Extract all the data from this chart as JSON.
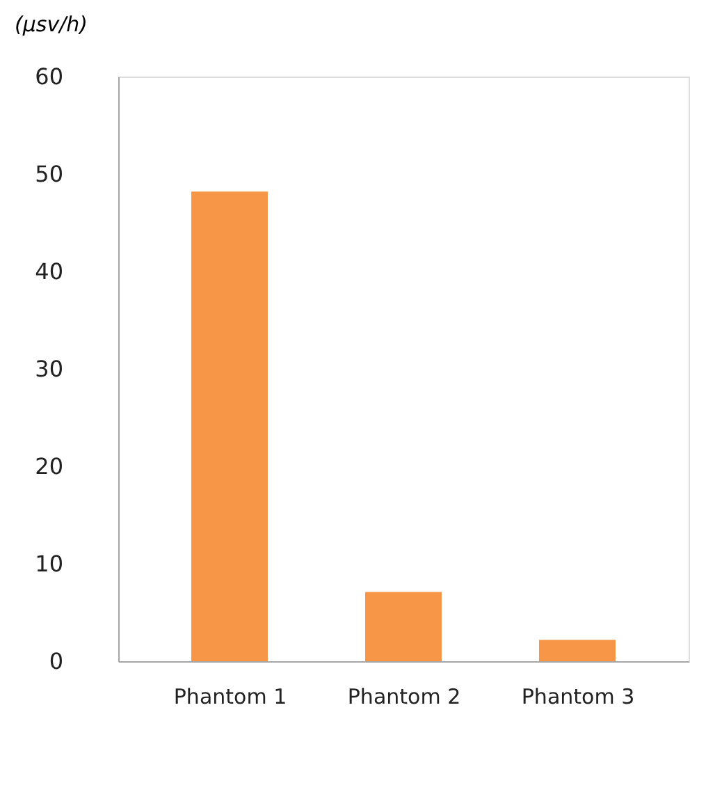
{
  "chart_data": {
    "type": "bar",
    "ylabel": "(μsv/h)",
    "categories": [
      "Phantom 1",
      "Phantom 2",
      "Phantom 3"
    ],
    "values": [
      48.2,
      7.1,
      2.2
    ],
    "color": "#f79646",
    "ylim": [
      0,
      60
    ],
    "yticks": [
      0,
      10,
      20,
      30,
      40,
      50,
      60
    ],
    "grid": false
  }
}
